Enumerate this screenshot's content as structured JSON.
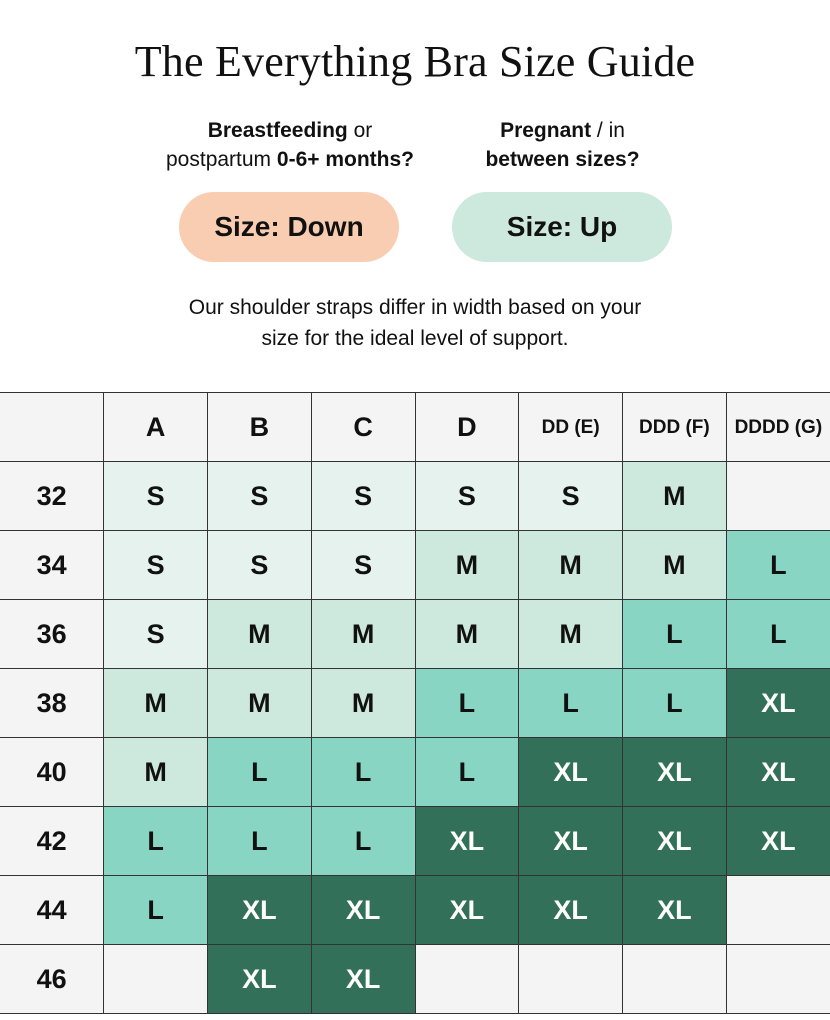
{
  "title": "The Everything Bra Size Guide",
  "down": {
    "q_bold1": "Breastfeeding",
    "q_reg1": " or",
    "q_reg2": "postpartum ",
    "q_bold2": "0-6+ months?",
    "button": "Size: Down"
  },
  "up": {
    "q_bold1": "Pregnant",
    "q_reg1": " / in",
    "q_bold2": "between sizes?",
    "button": "Size: Up"
  },
  "note_line1": "Our shoulder straps differ in width based on your",
  "note_line2": "size for the ideal level of support.",
  "colors": {
    "S": "#e6f2ee",
    "M": "#cde8dc",
    "L": "#88d5c3",
    "XL": "#33705a",
    "down": "#f9cdb1",
    "up": "#cde8dc"
  },
  "table": {
    "columns": [
      "A",
      "B",
      "C",
      "D",
      "DD (E)",
      "DDD (F)",
      "DDDD (G)"
    ],
    "rows": [
      {
        "band": "32",
        "sizes": [
          "S",
          "S",
          "S",
          "S",
          "S",
          "M",
          ""
        ]
      },
      {
        "band": "34",
        "sizes": [
          "S",
          "S",
          "S",
          "M",
          "M",
          "M",
          "L"
        ]
      },
      {
        "band": "36",
        "sizes": [
          "S",
          "M",
          "M",
          "M",
          "M",
          "L",
          "L"
        ]
      },
      {
        "band": "38",
        "sizes": [
          "M",
          "M",
          "M",
          "L",
          "L",
          "L",
          "XL"
        ]
      },
      {
        "band": "40",
        "sizes": [
          "M",
          "L",
          "L",
          "L",
          "XL",
          "XL",
          "XL"
        ]
      },
      {
        "band": "42",
        "sizes": [
          "L",
          "L",
          "L",
          "XL",
          "XL",
          "XL",
          "XL"
        ]
      },
      {
        "band": "44",
        "sizes": [
          "L",
          "XL",
          "XL",
          "XL",
          "XL",
          "XL",
          ""
        ]
      },
      {
        "band": "46",
        "sizes": [
          "",
          "XL",
          "XL",
          "",
          "",
          "",
          ""
        ]
      }
    ]
  }
}
